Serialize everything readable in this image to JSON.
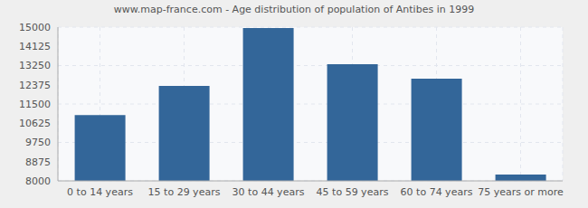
{
  "chart_data": {
    "type": "bar",
    "title": "www.map-france.com - Age distribution of population of Antibes in 1999",
    "categories": [
      "0 to 14 years",
      "15 to 29 years",
      "30 to 44 years",
      "45 to 59 years",
      "60 to 74 years",
      "75 years or more"
    ],
    "values": [
      11000,
      12320,
      14960,
      13310,
      12650,
      8290
    ],
    "color": "#336699",
    "ylim": [
      8000,
      15000
    ],
    "yticks": [
      8000,
      8875,
      9750,
      10625,
      11500,
      12375,
      13250,
      14125,
      15000
    ],
    "grid": true
  }
}
